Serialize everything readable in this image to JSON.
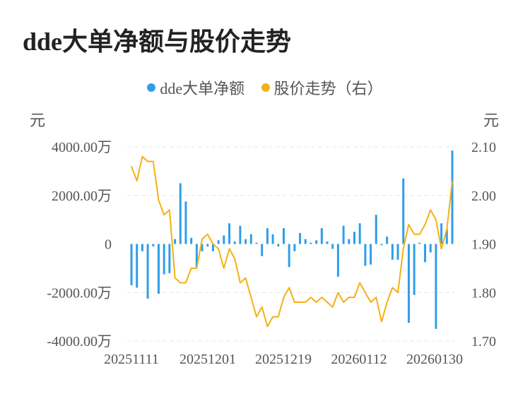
{
  "title": "dde大单净额与股价走势",
  "legend": [
    {
      "label": "dde大单净额",
      "color": "#2f9ee8"
    },
    {
      "label": "股价走势（右）",
      "color": "#f5b014"
    }
  ],
  "left_axis_unit": "元",
  "right_axis_unit": "元",
  "left_tick_labels": [
    "4000.00万",
    "2000.00万",
    "0",
    "-2000.00万",
    "-4000.00万"
  ],
  "right_tick_labels": [
    "2.10",
    "2.00",
    "1.90",
    "1.80",
    "1.70"
  ],
  "x_tick_labels": [
    "20251111",
    "20251201",
    "20251219",
    "20260112",
    "20260130"
  ],
  "chart_data": {
    "type": "bar",
    "title": "dde大单净额与股价走势",
    "x_ticks": [
      "20251111",
      "20251201",
      "20251219",
      "20260112",
      "20260130"
    ],
    "y_left": {
      "unit": "元",
      "range": [
        -4000,
        4000
      ],
      "tick_suffix": "万",
      "ticks": [
        -4000,
        -2000,
        0,
        2000,
        4000
      ]
    },
    "y_right": {
      "unit": "元",
      "range": [
        1.7,
        2.1
      ],
      "ticks": [
        1.7,
        1.8,
        1.9,
        2.0,
        2.1
      ]
    },
    "grid": true,
    "legend_position": "top-center",
    "series": [
      {
        "name": "dde大单净额",
        "type": "bar",
        "axis": "left",
        "color": "#2f9ee8",
        "values": [
          -1700,
          -1800,
          -300,
          -2250,
          -100,
          -2050,
          -1250,
          -1200,
          200,
          2500,
          1750,
          250,
          -950,
          -300,
          -100,
          -300,
          150,
          350,
          850,
          100,
          750,
          200,
          400,
          50,
          -500,
          650,
          400,
          -100,
          650,
          -950,
          -300,
          450,
          200,
          50,
          150,
          650,
          100,
          -200,
          -1350,
          750,
          200,
          500,
          850,
          -900,
          -850,
          1200,
          -50,
          300,
          -650,
          -650,
          2700,
          -3250,
          -2100,
          50,
          -750,
          -350,
          -3500,
          850,
          600,
          3850
        ]
      },
      {
        "name": "股价走势（右）",
        "type": "line",
        "axis": "right",
        "color": "#f5b014",
        "values": [
          2.06,
          2.03,
          2.08,
          2.07,
          2.07,
          1.99,
          1.96,
          1.97,
          1.83,
          1.82,
          1.82,
          1.85,
          1.85,
          1.91,
          1.92,
          1.9,
          1.89,
          1.85,
          1.89,
          1.87,
          1.82,
          1.83,
          1.79,
          1.75,
          1.77,
          1.73,
          1.75,
          1.75,
          1.79,
          1.81,
          1.78,
          1.78,
          1.78,
          1.79,
          1.78,
          1.79,
          1.78,
          1.77,
          1.8,
          1.78,
          1.79,
          1.79,
          1.82,
          1.8,
          1.78,
          1.79,
          1.74,
          1.78,
          1.81,
          1.8,
          1.89,
          1.94,
          1.92,
          1.92,
          1.94,
          1.97,
          1.95,
          1.89,
          1.93,
          2.03
        ]
      }
    ]
  }
}
